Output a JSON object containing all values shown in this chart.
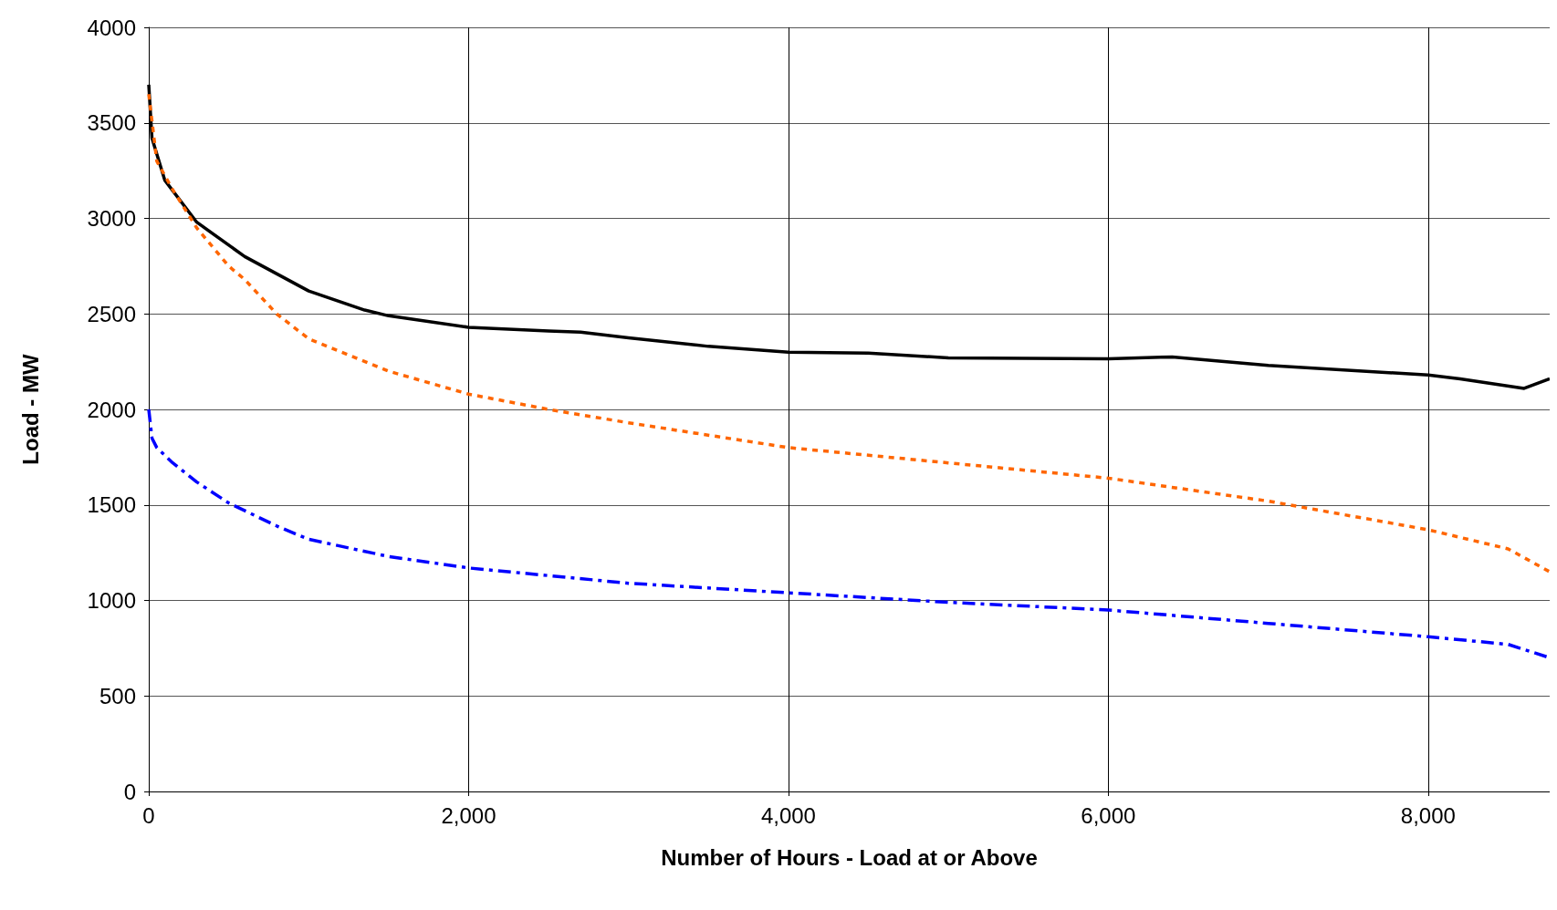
{
  "chart_data": {
    "type": "line",
    "xlabel": "Number of Hours - Load at or Above",
    "ylabel": "Load - MW",
    "xlim": [
      0,
      8760
    ],
    "xticks": [
      0,
      {
        "value": 2000,
        "label": "2,000"
      },
      {
        "value": 4000,
        "label": "4,000"
      },
      {
        "value": 6000,
        "label": "6,000"
      },
      {
        "value": 8000,
        "label": "8,000"
      }
    ],
    "ylim": [
      0,
      4000
    ],
    "yticks": [
      0,
      500,
      1000,
      1500,
      2000,
      2500,
      3000,
      3500,
      4000
    ],
    "grid": true,
    "marker": "none",
    "series": [
      {
        "color": "#000000",
        "line_style": "solid",
        "x": [
          0,
          20,
          100,
          300,
          600,
          1000,
          1350,
          1500,
          2000,
          2500,
          2700,
          3000,
          3500,
          4000,
          4500,
          5000,
          6000,
          6400,
          7000,
          8000,
          8200,
          8600,
          8760
        ],
        "values": [
          3700,
          3420,
          3200,
          2980,
          2800,
          2620,
          2520,
          2490,
          2430,
          2410,
          2405,
          2375,
          2330,
          2300,
          2295,
          2270,
          2265,
          2275,
          2230,
          2180,
          2160,
          2110,
          2160
        ]
      },
      {
        "color": "#ff6600",
        "line_style": "dotted",
        "x": [
          0,
          50,
          150,
          300,
          500,
          600,
          800,
          1000,
          1500,
          2000,
          2500,
          3000,
          4000,
          5000,
          6000,
          6500,
          7000,
          8000,
          8500,
          8760
        ],
        "values": [
          3650,
          3300,
          3150,
          2950,
          2750,
          2680,
          2500,
          2370,
          2200,
          2080,
          2000,
          1930,
          1800,
          1720,
          1640,
          1580,
          1520,
          1370,
          1270,
          1150
        ]
      },
      {
        "color": "#0000ff",
        "line_style": "dashed",
        "x": [
          0,
          20,
          50,
          150,
          300,
          500,
          800,
          1000,
          1500,
          2000,
          3000,
          4000,
          5000,
          6000,
          7000,
          8000,
          8500,
          8760
        ],
        "values": [
          2000,
          1850,
          1800,
          1720,
          1620,
          1510,
          1390,
          1320,
          1230,
          1170,
          1090,
          1040,
          990,
          950,
          880,
          810,
          770,
          700
        ]
      }
    ]
  }
}
